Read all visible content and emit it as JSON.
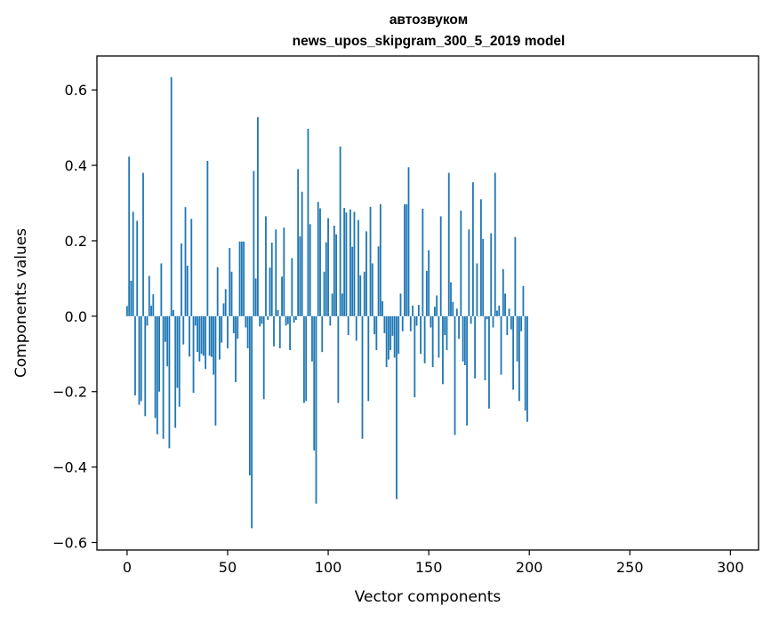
{
  "chart_data": {
    "type": "bar",
    "title_line1": "автозвуком",
    "title_line2": "news_upos_skipgram_300_5_2019 model",
    "xlabel": "Vector components",
    "ylabel": "Components values",
    "xlim": [
      -15,
      314
    ],
    "ylim": [
      -0.62,
      0.69
    ],
    "xticks": [
      0,
      50,
      100,
      150,
      200,
      250,
      300
    ],
    "xtick_labels": [
      "0",
      "50",
      "100",
      "150",
      "200",
      "250",
      "300"
    ],
    "yticks": [
      -0.6,
      -0.4,
      -0.2,
      0.0,
      0.2,
      0.4,
      0.6
    ],
    "ytick_labels": [
      "−0.6",
      "−0.4",
      "−0.2",
      "0.0",
      "0.2",
      "0.4",
      "0.6"
    ],
    "bar_color": "#1f77b4",
    "grid": false,
    "values": [
      0.027,
      0.423,
      0.094,
      0.277,
      -0.21,
      0.253,
      -0.235,
      -0.225,
      0.38,
      -0.265,
      -0.025,
      0.107,
      0.028,
      0.058,
      -0.27,
      -0.313,
      -0.2,
      0.14,
      -0.325,
      -0.068,
      -0.133,
      -0.35,
      0.634,
      0.016,
      -0.296,
      -0.19,
      -0.24,
      0.193,
      -0.075,
      0.289,
      0.134,
      -0.107,
      0.258,
      -0.203,
      -0.025,
      -0.095,
      -0.12,
      -0.1,
      -0.105,
      -0.14,
      0.412,
      -0.105,
      -0.108,
      -0.155,
      -0.29,
      0.13,
      -0.115,
      -0.07,
      0.034,
      0.072,
      -0.085,
      0.181,
      0.118,
      -0.045,
      -0.175,
      -0.06,
      0.198,
      0.198,
      0.198,
      -0.03,
      -0.085,
      -0.422,
      -0.562,
      0.385,
      0.1,
      0.528,
      -0.027,
      -0.02,
      -0.22,
      0.265,
      -0.01,
      0.129,
      0.195,
      -0.08,
      0.23,
      0.016,
      -0.085,
      0.105,
      0.235,
      -0.025,
      -0.021,
      -0.09,
      0.154,
      -0.017,
      -0.01,
      0.39,
      0.212,
      0.33,
      -0.23,
      -0.225,
      0.497,
      0.244,
      -0.12,
      -0.356,
      -0.497,
      0.303,
      0.286,
      -0.095,
      0.118,
      0.196,
      0.26,
      -0.025,
      0.06,
      0.24,
      0.217,
      -0.23,
      0.45,
      0.06,
      0.287,
      0.275,
      -0.05,
      0.283,
      0.184,
      0.277,
      -0.065,
      0.255,
      0.108,
      -0.325,
      0.118,
      0.225,
      -0.225,
      0.29,
      0.14,
      -0.048,
      -0.09,
      0.185,
      0.297,
      0.04,
      -0.045,
      -0.135,
      -0.115,
      -0.09,
      -0.052,
      -0.11,
      -0.485,
      -0.1,
      0.06,
      -0.04,
      0.297,
      0.297,
      0.395,
      -0.04,
      0.028,
      -0.215,
      -0.025,
      0.03,
      -0.1,
      0.285,
      -0.125,
      0.12,
      0.175,
      -0.03,
      -0.135,
      0.025,
      0.055,
      -0.11,
      0.265,
      -0.18,
      -0.05,
      -0.09,
      0.38,
      0.09,
      0.038,
      -0.315,
      0.02,
      -0.06,
      0.28,
      -0.12,
      -0.13,
      -0.29,
      0.23,
      -0.02,
      0.355,
      -0.165,
      0.14,
      0.0,
      0.31,
      0.205,
      -0.17,
      -0.008,
      -0.245,
      0.22,
      -0.03,
      0.38,
      0.015,
      0.028,
      -0.155,
      0.125,
      0.06,
      -0.05,
      0.02,
      -0.035,
      -0.195,
      0.21,
      -0.12,
      -0.225,
      -0.04,
      0.08,
      -0.25,
      -0.28
    ]
  }
}
